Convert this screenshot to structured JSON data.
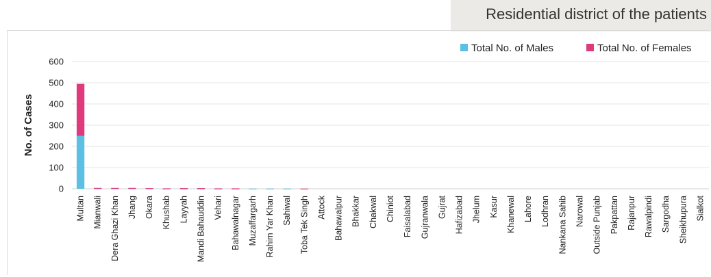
{
  "header": {
    "title": "Residential district of the patients"
  },
  "colors": {
    "males": "#5bc0e4",
    "females": "#e0397c",
    "grid": "#e6e6e6",
    "axis": "#cfcfcf"
  },
  "chart_data": {
    "type": "bar",
    "stacked": true,
    "title": "",
    "xlabel": "",
    "ylabel": "No. of Cases",
    "ylim": [
      0,
      600
    ],
    "yticks": [
      0,
      100,
      200,
      300,
      400,
      500,
      600
    ],
    "grid": true,
    "legend_position": "top-right",
    "categories": [
      "Multan",
      "Mianwali",
      "Dera Ghazi Khan",
      "Jhang",
      "Okara",
      "Khushab",
      "Layyah",
      "Mandi Bahauddin",
      "Vehari",
      "Bahawalnagar",
      "Muzaffargarh",
      "Rahim Yar Khan",
      "Sahiwal",
      "Toba Tek Singh",
      "Attock",
      "Bahawalpur",
      "Bhakkar",
      "Chakwal",
      "Chiniot",
      "Faisalabad",
      "Gujranwala",
      "Gujrat",
      "Hafizabad",
      "Jhelum",
      "Kasur",
      "Khanewal",
      "Lahore",
      "Lodhran",
      "Nankana Sahib",
      "Narowal",
      "Outside Punjab",
      "Pakpattan",
      "Rajanpur",
      "Rawalpindi",
      "Sargodha",
      "Sheikhupura",
      "Sialkot"
    ],
    "series": [
      {
        "name": "Total No. of Males",
        "values": [
          250,
          2,
          2,
          2,
          2,
          1,
          1,
          1,
          1,
          1,
          1,
          1,
          1,
          0,
          0,
          0,
          0,
          0,
          0,
          0,
          0,
          0,
          0,
          0,
          0,
          0,
          0,
          0,
          0,
          0,
          0,
          0,
          0,
          0,
          0,
          0,
          0
        ]
      },
      {
        "name": "Total No. of Females",
        "values": [
          245,
          2,
          2,
          2,
          1,
          1,
          2,
          2,
          1,
          1,
          0,
          0,
          0,
          1,
          0,
          0,
          0,
          0,
          0,
          0,
          0,
          0,
          0,
          0,
          0,
          0,
          0,
          0,
          0,
          0,
          0,
          0,
          0,
          0,
          0,
          0,
          0
        ]
      }
    ]
  }
}
